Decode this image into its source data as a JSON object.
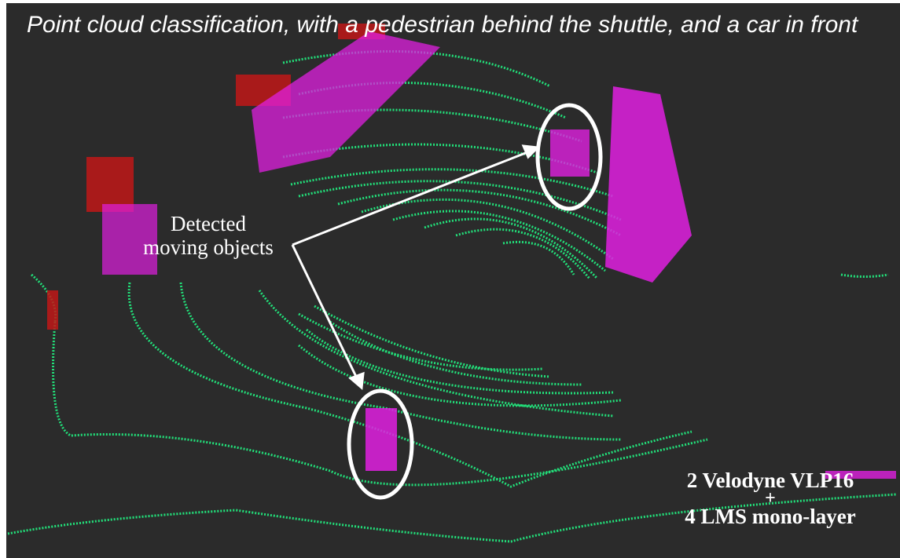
{
  "title": "Point cloud classification, with a pedestrian behind the shuttle, and a car in front",
  "annotation": {
    "line1": "Detected",
    "line2": "moving objects"
  },
  "sensors": {
    "line1": "2 Velodyne VLP16",
    "plus": "+",
    "line2": "4 LMS mono-layer"
  },
  "colors": {
    "background": "#2b2b2b",
    "ground": "#22e07a",
    "moving": "#e020e0",
    "static_red": "#c01818",
    "annotation": "#ffffff"
  }
}
